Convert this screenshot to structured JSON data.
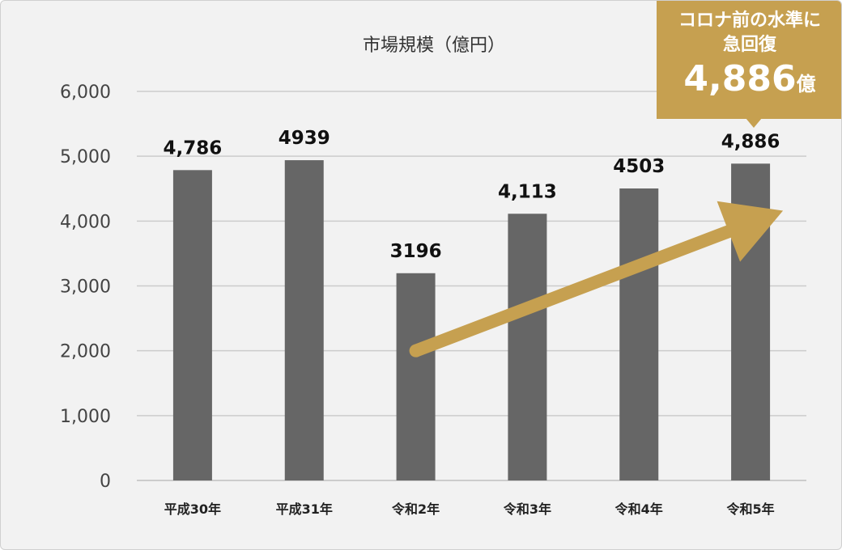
{
  "chart_data": {
    "type": "bar",
    "title": "市場規模（億円）",
    "categories": [
      "平成30年",
      "平成31年",
      "令和2年",
      "令和3年",
      "令和4年",
      "令和5年"
    ],
    "values": [
      4786,
      4939,
      3196,
      4113,
      4503,
      4886
    ],
    "data_labels": [
      "4,786",
      "4939",
      "3196",
      "4,113",
      "4503",
      "4,886"
    ],
    "ylim": [
      0,
      6000
    ],
    "yticks": [
      0,
      1000,
      2000,
      3000,
      4000,
      5000,
      6000
    ],
    "ytick_labels": [
      "0",
      "1,000",
      "2,000",
      "3,000",
      "4,000",
      "5,000",
      "6,000"
    ],
    "grid": true,
    "bar_color": "#666666",
    "arrow_color": "#c6a050",
    "annotation": {
      "line1": "コロナ前の水準に",
      "line2": "急回復",
      "value": "4,886",
      "unit": "億",
      "color": "#c6a050",
      "from_category": "令和2年",
      "to_category": "令和5年"
    }
  }
}
